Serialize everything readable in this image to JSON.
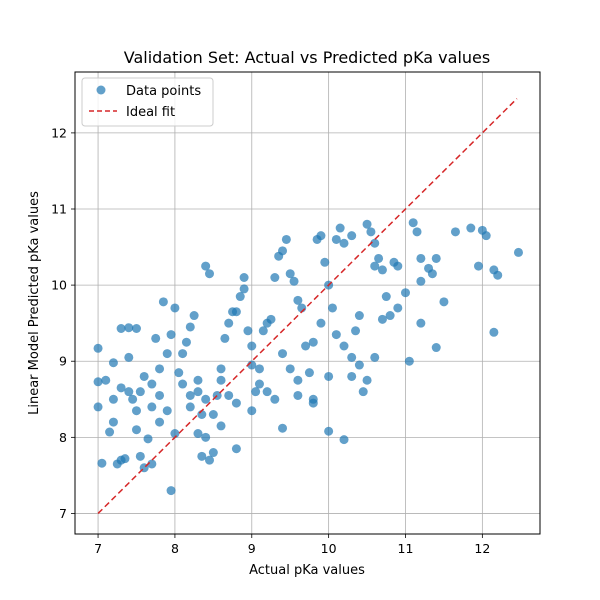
{
  "chart_data": {
    "type": "scatter",
    "title": "Validation Set: Actual vs Predicted pKa values",
    "xlabel": "Actual pKa values",
    "ylabel": "Linear Model Predicted pKa values",
    "xlim": [
      6.7,
      12.75
    ],
    "ylim": [
      6.73,
      12.8
    ],
    "xticks": [
      7,
      8,
      9,
      10,
      11,
      12
    ],
    "yticks": [
      7,
      8,
      9,
      10,
      11,
      12
    ],
    "grid": true,
    "legend_placement": "top-left",
    "series": [
      {
        "name": "Data points",
        "kind": "scatter",
        "color": "#1f77b4",
        "points": [
          [
            7.0,
            9.17
          ],
          [
            7.0,
            8.73
          ],
          [
            7.0,
            8.4
          ],
          [
            7.05,
            7.66
          ],
          [
            7.1,
            8.75
          ],
          [
            7.15,
            8.07
          ],
          [
            7.2,
            8.5
          ],
          [
            7.25,
            7.65
          ],
          [
            7.3,
            7.7
          ],
          [
            7.35,
            7.72
          ],
          [
            7.3,
            9.43
          ],
          [
            7.4,
            9.44
          ],
          [
            7.5,
            9.43
          ],
          [
            7.2,
            8.98
          ],
          [
            7.4,
            9.05
          ],
          [
            7.3,
            8.65
          ],
          [
            7.45,
            8.5
          ],
          [
            7.5,
            8.1
          ],
          [
            7.55,
            8.6
          ],
          [
            7.6,
            8.8
          ],
          [
            7.6,
            7.6
          ],
          [
            7.7,
            7.65
          ],
          [
            7.55,
            7.75
          ],
          [
            7.65,
            7.98
          ],
          [
            7.7,
            8.4
          ],
          [
            7.8,
            8.9
          ],
          [
            7.75,
            9.3
          ],
          [
            7.85,
            9.78
          ],
          [
            7.9,
            9.1
          ],
          [
            7.95,
            9.35
          ],
          [
            8.0,
            9.7
          ],
          [
            8.05,
            8.85
          ],
          [
            8.1,
            9.1
          ],
          [
            8.15,
            9.25
          ],
          [
            8.2,
            9.45
          ],
          [
            8.25,
            9.6
          ],
          [
            8.3,
            8.05
          ],
          [
            8.3,
            8.6
          ],
          [
            8.35,
            7.75
          ],
          [
            8.35,
            8.3
          ],
          [
            8.4,
            10.25
          ],
          [
            8.45,
            10.15
          ],
          [
            8.45,
            7.7
          ],
          [
            8.5,
            7.8
          ],
          [
            8.4,
            8.0
          ],
          [
            8.5,
            8.3
          ],
          [
            8.55,
            8.55
          ],
          [
            8.6,
            8.9
          ],
          [
            8.65,
            9.3
          ],
          [
            8.7,
            9.5
          ],
          [
            8.75,
            9.65
          ],
          [
            8.8,
            9.65
          ],
          [
            8.85,
            9.85
          ],
          [
            8.9,
            9.95
          ],
          [
            8.9,
            10.1
          ],
          [
            8.95,
            9.4
          ],
          [
            9.0,
            9.2
          ],
          [
            9.05,
            8.6
          ],
          [
            9.1,
            8.9
          ],
          [
            9.15,
            9.4
          ],
          [
            9.2,
            9.5
          ],
          [
            9.25,
            9.55
          ],
          [
            9.3,
            10.1
          ],
          [
            9.35,
            10.38
          ],
          [
            9.4,
            10.45
          ],
          [
            9.45,
            10.6
          ],
          [
            9.5,
            10.15
          ],
          [
            9.55,
            10.05
          ],
          [
            9.6,
            9.8
          ],
          [
            9.65,
            9.7
          ],
          [
            9.7,
            9.2
          ],
          [
            9.75,
            8.85
          ],
          [
            9.8,
            8.5
          ],
          [
            9.85,
            10.6
          ],
          [
            9.9,
            10.65
          ],
          [
            9.95,
            10.3
          ],
          [
            10.0,
            10.0
          ],
          [
            10.05,
            9.7
          ],
          [
            10.1,
            10.6
          ],
          [
            10.15,
            10.75
          ],
          [
            10.2,
            10.55
          ],
          [
            10.3,
            10.65
          ],
          [
            10.35,
            9.4
          ],
          [
            10.4,
            8.95
          ],
          [
            10.45,
            8.6
          ],
          [
            10.5,
            10.8
          ],
          [
            10.55,
            10.7
          ],
          [
            10.6,
            10.55
          ],
          [
            10.65,
            10.35
          ],
          [
            10.7,
            10.2
          ],
          [
            10.75,
            9.85
          ],
          [
            10.8,
            9.6
          ],
          [
            10.85,
            10.3
          ],
          [
            10.9,
            9.7
          ],
          [
            11.0,
            9.9
          ],
          [
            11.05,
            9.0
          ],
          [
            11.1,
            10.82
          ],
          [
            11.15,
            10.7
          ],
          [
            11.2,
            10.35
          ],
          [
            11.2,
            9.5
          ],
          [
            11.3,
            10.22
          ],
          [
            11.35,
            10.15
          ],
          [
            11.4,
            9.18
          ],
          [
            11.5,
            9.78
          ],
          [
            11.4,
            10.35
          ],
          [
            11.65,
            10.7
          ],
          [
            11.85,
            10.75
          ],
          [
            12.0,
            10.72
          ],
          [
            12.05,
            10.65
          ],
          [
            12.15,
            10.2
          ],
          [
            12.2,
            10.13
          ],
          [
            12.15,
            9.38
          ],
          [
            12.47,
            10.43
          ],
          [
            11.95,
            10.25
          ],
          [
            10.2,
            7.97
          ],
          [
            10.0,
            8.08
          ],
          [
            9.4,
            8.12
          ],
          [
            8.8,
            7.85
          ],
          [
            7.95,
            7.3
          ],
          [
            9.9,
            9.5
          ],
          [
            10.2,
            9.2
          ],
          [
            10.6,
            9.05
          ],
          [
            10.3,
            8.8
          ],
          [
            9.5,
            8.9
          ],
          [
            9.1,
            8.7
          ],
          [
            8.7,
            8.55
          ],
          [
            8.2,
            8.55
          ],
          [
            7.8,
            8.55
          ],
          [
            10.6,
            10.25
          ],
          [
            10.9,
            10.25
          ],
          [
            11.2,
            10.05
          ],
          [
            10.5,
            8.75
          ],
          [
            9.6,
            8.55
          ],
          [
            9.8,
            8.45
          ],
          [
            8.0,
            8.05
          ],
          [
            8.6,
            8.15
          ],
          [
            9.0,
            8.35
          ],
          [
            9.3,
            8.5
          ],
          [
            8.3,
            8.75
          ],
          [
            7.9,
            8.35
          ],
          [
            7.5,
            8.35
          ],
          [
            7.2,
            8.2
          ],
          [
            7.4,
            8.6
          ],
          [
            7.7,
            8.7
          ],
          [
            8.1,
            8.7
          ],
          [
            8.4,
            8.5
          ],
          [
            8.8,
            8.45
          ],
          [
            9.2,
            8.6
          ],
          [
            9.6,
            8.75
          ],
          [
            10.0,
            8.8
          ],
          [
            10.3,
            9.05
          ],
          [
            10.7,
            9.55
          ],
          [
            10.4,
            9.6
          ],
          [
            10.1,
            9.35
          ],
          [
            9.8,
            9.25
          ],
          [
            9.4,
            9.1
          ],
          [
            9.0,
            8.95
          ],
          [
            8.6,
            8.75
          ],
          [
            8.2,
            8.4
          ],
          [
            7.8,
            8.2
          ]
        ]
      },
      {
        "name": "Ideal fit",
        "kind": "line",
        "color": "#d62728",
        "x": [
          7.0,
          12.45
        ],
        "y": [
          7.0,
          12.45
        ]
      }
    ]
  }
}
